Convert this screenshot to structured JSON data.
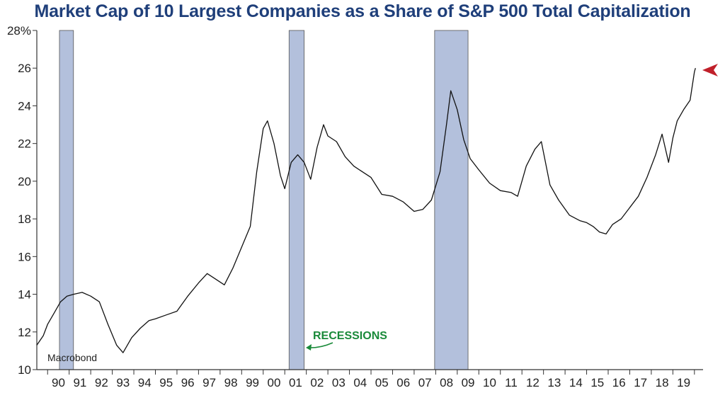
{
  "chart_data": {
    "type": "line",
    "title": "Market Cap of 10 Largest Companies as a Share of S&P 500 Total Capitalization",
    "source_label": "Macrobond",
    "annotation": "RECESSIONS",
    "colors": {
      "title": "#1f3f7a",
      "line": "#111111",
      "recession": "#b3c0dc",
      "annotation": "#1a8a3a",
      "marker": "#c0202a"
    },
    "ylim": [
      10,
      28
    ],
    "yticks": [
      10,
      12,
      14,
      16,
      18,
      20,
      22,
      24,
      26,
      28
    ],
    "ytick_labels": [
      "10",
      "12",
      "14",
      "16",
      "18",
      "20",
      "22",
      "24",
      "26",
      "28%"
    ],
    "xlim": [
      1989.5,
      2020.4
    ],
    "xticks": [
      1990,
      1991,
      1992,
      1993,
      1994,
      1995,
      1996,
      1997,
      1998,
      1999,
      2000,
      2001,
      2002,
      2003,
      2004,
      2005,
      2006,
      2007,
      2008,
      2009,
      2010,
      2011,
      2012,
      2013,
      2014,
      2015,
      2016,
      2017,
      2018,
      2019
    ],
    "xtick_labels": [
      "90",
      "91",
      "92",
      "93",
      "94",
      "95",
      "96",
      "97",
      "98",
      "99",
      "00",
      "01",
      "02",
      "03",
      "04",
      "05",
      "06",
      "07",
      "08",
      "09",
      "10",
      "11",
      "12",
      "13",
      "14",
      "15",
      "16",
      "17",
      "18",
      "19"
    ],
    "recessions": [
      [
        1990.55,
        1991.2
      ],
      [
        2001.2,
        2001.9
      ],
      [
        2007.95,
        2009.5
      ]
    ],
    "series": [
      {
        "x": [
          1989.5,
          1989.8,
          1990.0,
          1990.3,
          1990.6,
          1990.9,
          1991.2,
          1991.6,
          1992.0,
          1992.4,
          1992.8,
          1993.2,
          1993.5,
          1993.9,
          1994.3,
          1994.7,
          1995.0,
          1995.5,
          1996.0,
          1996.5,
          1997.0,
          1997.4,
          1997.8,
          1998.2,
          1998.6,
          1999.0,
          1999.4,
          1999.7,
          2000.0,
          2000.2,
          2000.5,
          2000.8,
          2001.0,
          2001.3,
          2001.6,
          2001.9,
          2002.2,
          2002.5,
          2002.8,
          2003.0,
          2003.4,
          2003.8,
          2004.2,
          2004.6,
          2005.0,
          2005.5,
          2006.0,
          2006.5,
          2007.0,
          2007.4,
          2007.8,
          2008.2,
          2008.5,
          2008.7,
          2009.0,
          2009.3,
          2009.6,
          2010.0,
          2010.5,
          2011.0,
          2011.5,
          2011.8,
          2012.2,
          2012.6,
          2012.9,
          2013.3,
          2013.7,
          2014.2,
          2014.7,
          2015.0,
          2015.3,
          2015.6,
          2015.9,
          2016.2,
          2016.6,
          2017.0,
          2017.4,
          2017.8,
          2018.2,
          2018.5,
          2018.8,
          2019.0,
          2019.2,
          2019.5,
          2019.8,
          2020.0,
          2020.05
        ],
        "y": [
          11.3,
          11.8,
          12.4,
          13.0,
          13.6,
          13.9,
          14.0,
          14.1,
          13.9,
          13.6,
          12.4,
          11.3,
          10.9,
          11.7,
          12.2,
          12.6,
          12.7,
          12.9,
          13.1,
          13.9,
          14.6,
          15.1,
          14.8,
          14.5,
          15.4,
          16.5,
          17.6,
          20.5,
          22.8,
          23.2,
          22.0,
          20.3,
          19.6,
          21.0,
          21.4,
          21.0,
          20.1,
          21.8,
          23.0,
          22.4,
          22.1,
          21.3,
          20.8,
          20.5,
          20.2,
          19.3,
          19.2,
          18.9,
          18.4,
          18.5,
          19.0,
          20.5,
          23.0,
          24.8,
          23.8,
          22.2,
          21.2,
          20.6,
          19.9,
          19.5,
          19.4,
          19.2,
          20.8,
          21.7,
          22.1,
          19.8,
          19.0,
          18.2,
          17.9,
          17.8,
          17.6,
          17.3,
          17.2,
          17.7,
          18.0,
          18.6,
          19.2,
          20.2,
          21.4,
          22.5,
          21.0,
          22.3,
          23.2,
          23.8,
          24.3,
          25.8,
          26.0
        ]
      }
    ]
  }
}
